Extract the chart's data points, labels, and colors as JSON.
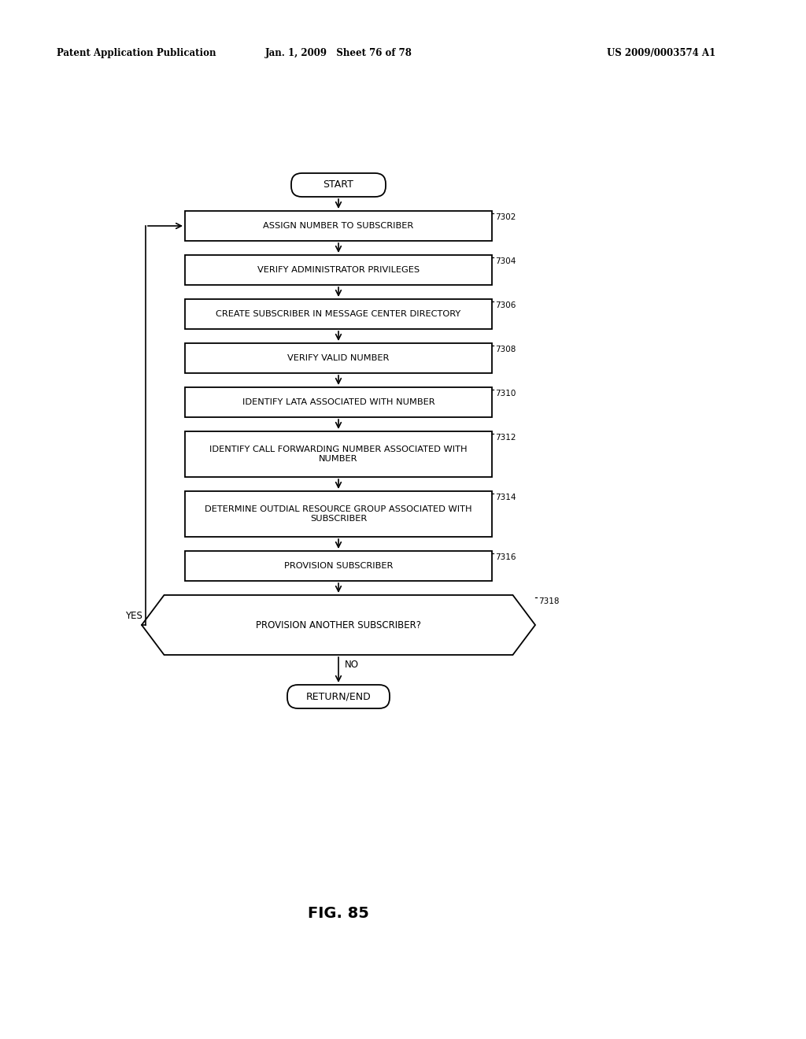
{
  "bg_color": "#ffffff",
  "header_left": "Patent Application Publication",
  "header_mid": "Jan. 1, 2009   Sheet 76 of 78",
  "header_right": "US 2009/0003574 A1",
  "figure_label": "FIG. 85",
  "start_label": "START",
  "end_label": "RETURN/END",
  "boxes": [
    {
      "label": "ASSIGN NUMBER TO SUBSCRIBER",
      "tag": "7302",
      "nlines": 1
    },
    {
      "label": "VERIFY ADMINISTRATOR PRIVILEGES",
      "tag": "7304",
      "nlines": 1
    },
    {
      "label": "CREATE SUBSCRIBER IN MESSAGE CENTER DIRECTORY",
      "tag": "7306",
      "nlines": 1
    },
    {
      "label": "VERIFY VALID NUMBER",
      "tag": "7308",
      "nlines": 1
    },
    {
      "label": "IDENTIFY LATA ASSOCIATED WITH NUMBER",
      "tag": "7310",
      "nlines": 1
    },
    {
      "label": "IDENTIFY CALL FORWARDING NUMBER ASSOCIATED WITH\nNUMBER",
      "tag": "7312",
      "nlines": 2
    },
    {
      "label": "DETERMINE OUTDIAL RESOURCE GROUP ASSOCIATED WITH\nSUBSCRIBER",
      "tag": "7314",
      "nlines": 2
    },
    {
      "label": "PROVISION SUBSCRIBER",
      "tag": "7316",
      "nlines": 1
    }
  ],
  "decision_label": "PROVISION ANOTHER SUBSCRIBER?",
  "decision_tag": "7318",
  "yes_label": "YES",
  "no_label": "NO"
}
